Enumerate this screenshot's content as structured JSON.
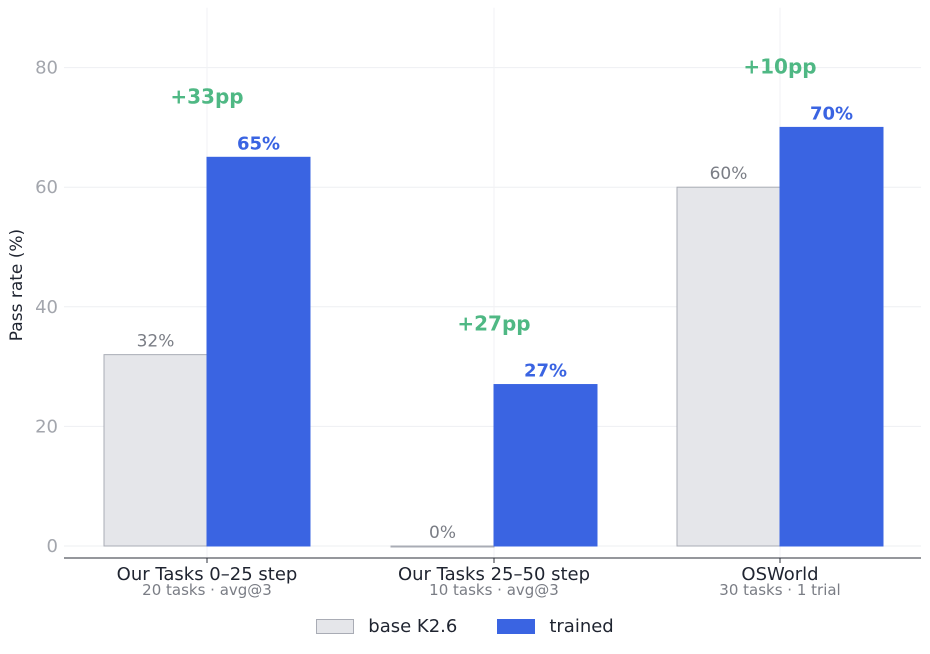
{
  "chart_data": {
    "type": "bar",
    "ylabel": "Pass rate (%)",
    "ylim": [
      -2,
      90
    ],
    "yticks": [
      0,
      20,
      40,
      60,
      80
    ],
    "grid": true,
    "legend_position": "bottom-center",
    "categories": [
      "Our Tasks 0–25 step",
      "Our Tasks 25–50 step",
      "OSWorld"
    ],
    "category_subtitles": [
      "20 tasks · avg@3",
      "10 tasks · avg@3",
      "30 tasks · 1 trial"
    ],
    "series": [
      {
        "name": "base K2.6",
        "values": [
          32,
          0,
          60
        ],
        "labels": [
          "32%",
          "0%",
          "60%"
        ],
        "color": "#e5e6ea",
        "edge": "#a9acb5"
      },
      {
        "name": "trained",
        "values": [
          65,
          27,
          70
        ],
        "labels": [
          "65%",
          "27%",
          "70%"
        ],
        "color": "#3a64e2",
        "edge": "#3a64e2"
      }
    ],
    "annotations": [
      "+33pp",
      "+27pp",
      "+10pp"
    ],
    "annotation_color": "#4fb884"
  }
}
